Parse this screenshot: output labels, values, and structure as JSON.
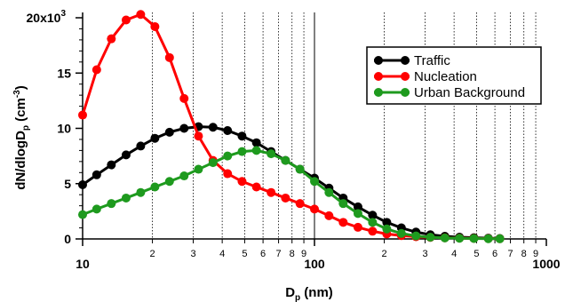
{
  "chart_data": {
    "type": "line",
    "x_scale": "log",
    "xlim": [
      10,
      1000
    ],
    "ylim": [
      0,
      20000
    ],
    "grid": "vertical dotted at x minor ticks",
    "legend_position": "top-right",
    "x_ticks": {
      "major": [
        10,
        100,
        1000
      ],
      "major_labels": [
        "10",
        "100",
        "1000"
      ],
      "minor_labels": [
        "2",
        "3",
        "4",
        "5",
        "6",
        "7",
        "8",
        "9"
      ]
    },
    "y_ticks": {
      "values": [
        0,
        5000,
        10000,
        15000,
        20000
      ],
      "labels": [
        "0",
        "5",
        "10",
        "15",
        "20x10"
      ],
      "top_label_exponent": "3"
    },
    "xlabel": {
      "main": "D",
      "sub": "p",
      "rest": " (nm)"
    },
    "ylabel": {
      "main": "dN/dlogD",
      "sub": "p",
      "rest": " (cm",
      "sup": "-3",
      "close": ")"
    },
    "series": [
      {
        "name": "Traffic",
        "color": "#000000",
        "x": [
          10,
          11.5,
          13.3,
          15.4,
          17.8,
          20.5,
          23.7,
          27.4,
          31.6,
          36.5,
          42.2,
          48.7,
          56.2,
          65,
          75,
          86.6,
          100,
          115.5,
          133,
          154,
          178,
          205,
          237,
          274,
          316,
          365,
          422,
          487,
          562,
          630
        ],
        "y": [
          4900,
          5800,
          6700,
          7600,
          8400,
          9100,
          9650,
          10000,
          10150,
          10100,
          9800,
          9300,
          8700,
          7900,
          7100,
          6300,
          5500,
          4600,
          3700,
          2900,
          2150,
          1500,
          1000,
          620,
          380,
          240,
          160,
          110,
          70,
          40
        ]
      },
      {
        "name": "Nucleation",
        "color": "#ff0000",
        "x": [
          10,
          11.5,
          13.3,
          15.4,
          17.8,
          20.5,
          23.7,
          27.4,
          31.6,
          36.5,
          42.2,
          48.7,
          56.2,
          65,
          75,
          86.6,
          100,
          115.5,
          133,
          154,
          178,
          205,
          237,
          274,
          316,
          365,
          422,
          487,
          562,
          630
        ],
        "y": [
          11200,
          15300,
          18100,
          19800,
          20300,
          19200,
          16400,
          12700,
          9300,
          7100,
          5900,
          5200,
          4700,
          4200,
          3700,
          3200,
          2700,
          2100,
          1500,
          1050,
          700,
          450,
          300,
          200,
          140,
          100,
          70,
          50,
          30,
          20
        ]
      },
      {
        "name": "Urban Background",
        "color": "#1e9a1e",
        "x": [
          10,
          11.5,
          13.3,
          15.4,
          17.8,
          20.5,
          23.7,
          27.4,
          31.6,
          36.5,
          42.2,
          48.7,
          56.2,
          65,
          75,
          86.6,
          100,
          115.5,
          133,
          154,
          178,
          205,
          237,
          274,
          316,
          365,
          422,
          487,
          562,
          630
        ],
        "y": [
          2200,
          2700,
          3200,
          3700,
          4200,
          4700,
          5200,
          5700,
          6300,
          6900,
          7500,
          7900,
          8000,
          7700,
          7100,
          6300,
          5200,
          4200,
          3200,
          2300,
          1500,
          900,
          500,
          270,
          150,
          90,
          60,
          40,
          25,
          15
        ]
      }
    ]
  }
}
